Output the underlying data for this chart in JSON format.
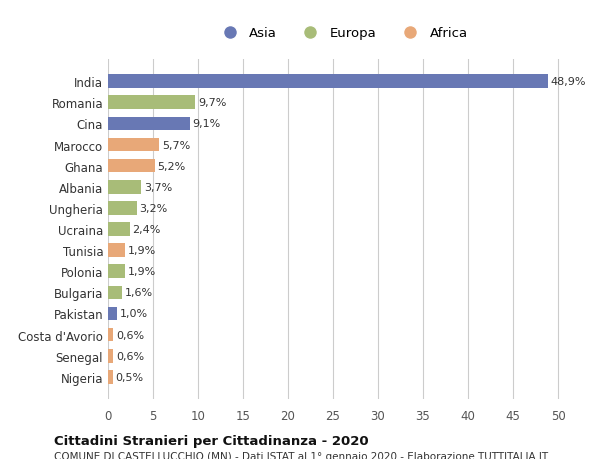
{
  "countries": [
    "India",
    "Romania",
    "Cina",
    "Marocco",
    "Ghana",
    "Albania",
    "Ungheria",
    "Ucraina",
    "Tunisia",
    "Polonia",
    "Bulgaria",
    "Pakistan",
    "Costa d'Avorio",
    "Senegal",
    "Nigeria"
  ],
  "values": [
    48.9,
    9.7,
    9.1,
    5.7,
    5.2,
    3.7,
    3.2,
    2.4,
    1.9,
    1.9,
    1.6,
    1.0,
    0.6,
    0.6,
    0.5
  ],
  "labels": [
    "48,9%",
    "9,7%",
    "9,1%",
    "5,7%",
    "5,2%",
    "3,7%",
    "3,2%",
    "2,4%",
    "1,9%",
    "1,9%",
    "1,6%",
    "1,0%",
    "0,6%",
    "0,6%",
    "0,5%"
  ],
  "continents": [
    "Asia",
    "Europa",
    "Asia",
    "Africa",
    "Africa",
    "Europa",
    "Europa",
    "Europa",
    "Africa",
    "Europa",
    "Europa",
    "Asia",
    "Africa",
    "Africa",
    "Africa"
  ],
  "colors": {
    "Asia": "#6878b4",
    "Europa": "#a8bc78",
    "Africa": "#e8a878"
  },
  "legend_order": [
    "Asia",
    "Europa",
    "Africa"
  ],
  "title": "Cittadini Stranieri per Cittadinanza - 2020",
  "subtitle": "COMUNE DI CASTELLUCCHIO (MN) - Dati ISTAT al 1° gennaio 2020 - Elaborazione TUTTITALIA.IT",
  "xlim": [
    0,
    52
  ],
  "xticks": [
    0,
    5,
    10,
    15,
    20,
    25,
    30,
    35,
    40,
    45,
    50
  ],
  "background_color": "#ffffff",
  "grid_color": "#cccccc",
  "bar_height": 0.65
}
